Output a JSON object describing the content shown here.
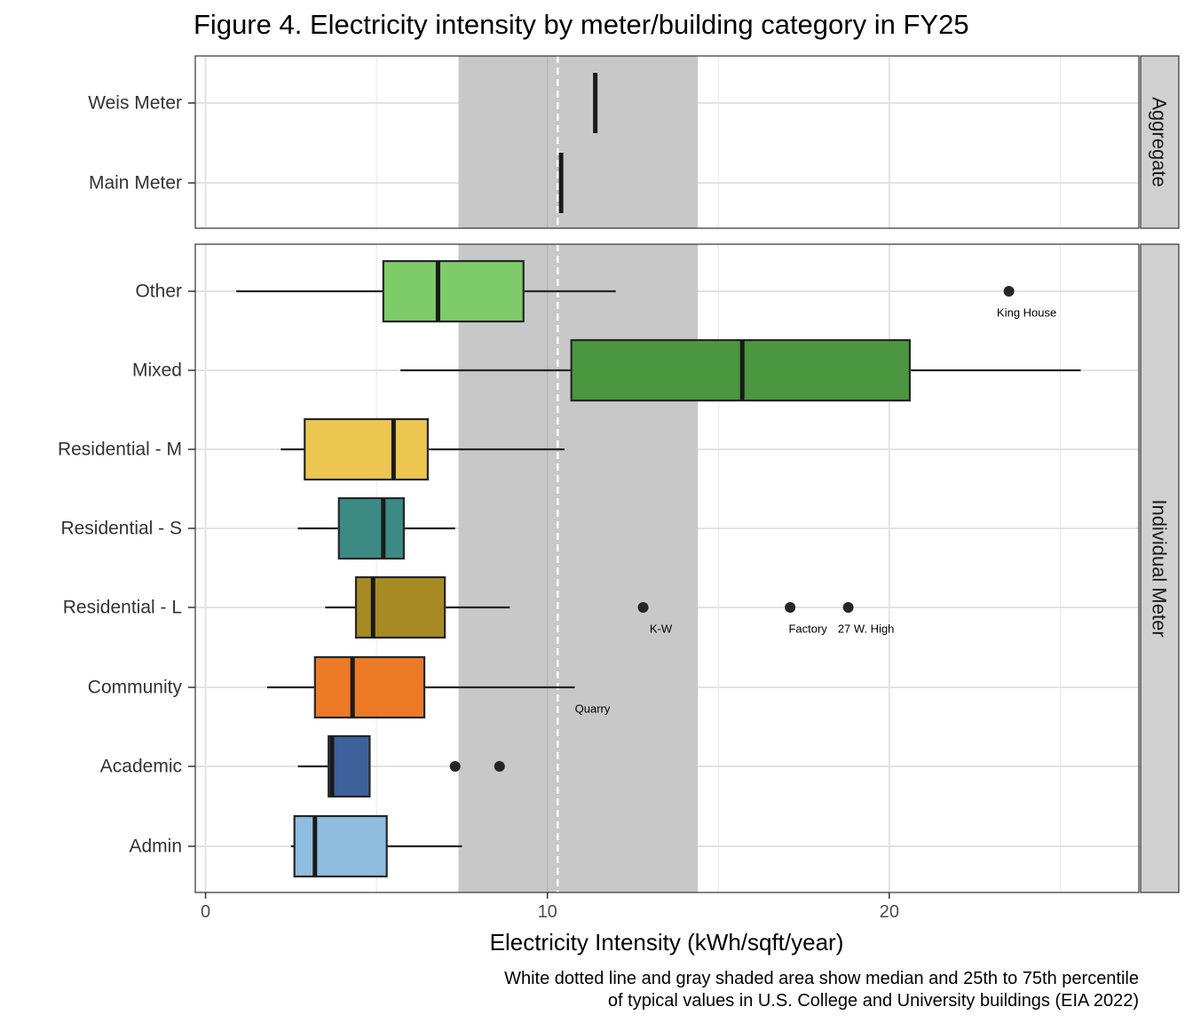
{
  "chart_data": {
    "type": "box",
    "title": "Figure 4. Electricity intensity by meter/building category in FY25",
    "xlabel": "Electricity Intensity (kWh/sqft/year)",
    "xlim": [
      -0.3,
      27.3
    ],
    "xticks": [
      0,
      10,
      20
    ],
    "caption_line1": "White dotted line and gray shaded area show median and 25th to 75th percentile",
    "caption_line2": "of typical values in U.S. College and University buildings (EIA 2022)",
    "reference": {
      "median": 10.3,
      "p25": 7.4,
      "p75": 14.4
    },
    "panels": [
      {
        "strip": "Aggregate",
        "items": [
          {
            "label": "Weis Meter",
            "value": 11.4
          },
          {
            "label": "Main Meter",
            "value": 10.4
          }
        ]
      },
      {
        "strip": "Individual Meter",
        "boxes": [
          {
            "label": "Other",
            "color": "#7ecb6a",
            "whisker_low": 0.9,
            "q1": 5.2,
            "median": 6.8,
            "q3": 9.3,
            "whisker_high": 12.0,
            "outliers": [
              {
                "value": 23.5,
                "label": "King House"
              }
            ]
          },
          {
            "label": "Mixed",
            "color": "#4a973f",
            "whisker_low": 5.7,
            "q1": 10.7,
            "median": 15.7,
            "q3": 20.6,
            "whisker_high": 25.6,
            "outliers": []
          },
          {
            "label": "Residential - M",
            "color": "#ecc651",
            "whisker_low": 2.2,
            "q1": 2.9,
            "median": 5.5,
            "q3": 6.5,
            "whisker_high": 10.5,
            "outliers": []
          },
          {
            "label": "Residential - S",
            "color": "#3b8b84",
            "whisker_low": 2.7,
            "q1": 3.9,
            "median": 5.2,
            "q3": 5.8,
            "whisker_high": 7.3,
            "outliers": []
          },
          {
            "label": "Residential - L",
            "color": "#a68a24",
            "whisker_low": 3.5,
            "q1": 4.4,
            "median": 4.9,
            "q3": 7.0,
            "whisker_high": 8.9,
            "outliers": [
              {
                "value": 12.8,
                "label": "K-W"
              },
              {
                "value": 17.1,
                "label": "Factory"
              },
              {
                "value": 18.8,
                "label": "27 W. High"
              }
            ]
          },
          {
            "label": "Community",
            "color": "#ec7a27",
            "whisker_low": 1.8,
            "q1": 3.2,
            "median": 4.3,
            "q3": 6.4,
            "whisker_high": 10.8,
            "outliers": [
              {
                "value": 10.8,
                "label": "Quarry",
                "label_only": true
              }
            ]
          },
          {
            "label": "Academic",
            "color": "#3c619b",
            "whisker_low": 2.7,
            "q1": 3.6,
            "median": 3.7,
            "q3": 4.8,
            "whisker_high": 4.8,
            "outliers": [
              {
                "value": 7.3
              },
              {
                "value": 8.6
              }
            ]
          },
          {
            "label": "Admin",
            "color": "#8fbde0",
            "whisker_low": 2.5,
            "q1": 2.6,
            "median": 3.2,
            "q3": 5.3,
            "whisker_high": 7.5,
            "outliers": []
          }
        ]
      }
    ]
  }
}
